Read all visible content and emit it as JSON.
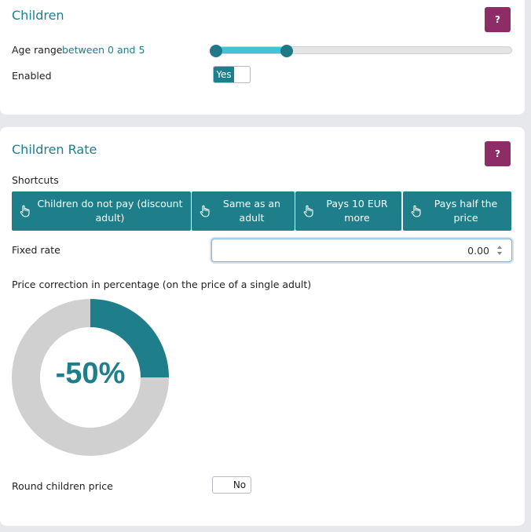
{
  "children_section": {
    "title": "Children",
    "help_label": "?",
    "age_range_label": "Age range",
    "age_range_value": "between 0 and 5",
    "age_range_min": 0,
    "age_range_max": 5,
    "enabled_label": "Enabled",
    "enabled_toggle": {
      "on_label": "Yes",
      "state": true
    }
  },
  "children_rate_section": {
    "title": "Children Rate",
    "help_label": "?",
    "shortcuts_label": "Shortcuts",
    "shortcuts": [
      {
        "label": "Children do not pay (discount adult)",
        "icon": "pointer-hand-icon"
      },
      {
        "label": "Same as an adult",
        "icon": "pointer-hand-icon"
      },
      {
        "label": "Pays 10 EUR more",
        "icon": "pointer-hand-icon"
      },
      {
        "label": "Pays half the price",
        "icon": "pointer-hand-icon"
      }
    ],
    "fixed_rate_label": "Fixed rate",
    "fixed_rate_value": "0.00",
    "price_correction_label": "Price correction in percentage (on the price of a single adult)",
    "price_correction_value_text": "-50%",
    "price_correction_percent": -50,
    "round_price_label": "Round children price",
    "round_price_toggle": {
      "off_label": "No",
      "state": false
    }
  },
  "colors": {
    "accent": "#1c7f8e",
    "help_button": "#8e2c68",
    "slider_fill": "#44c2d6",
    "donut_track": "#d0d0d0"
  }
}
